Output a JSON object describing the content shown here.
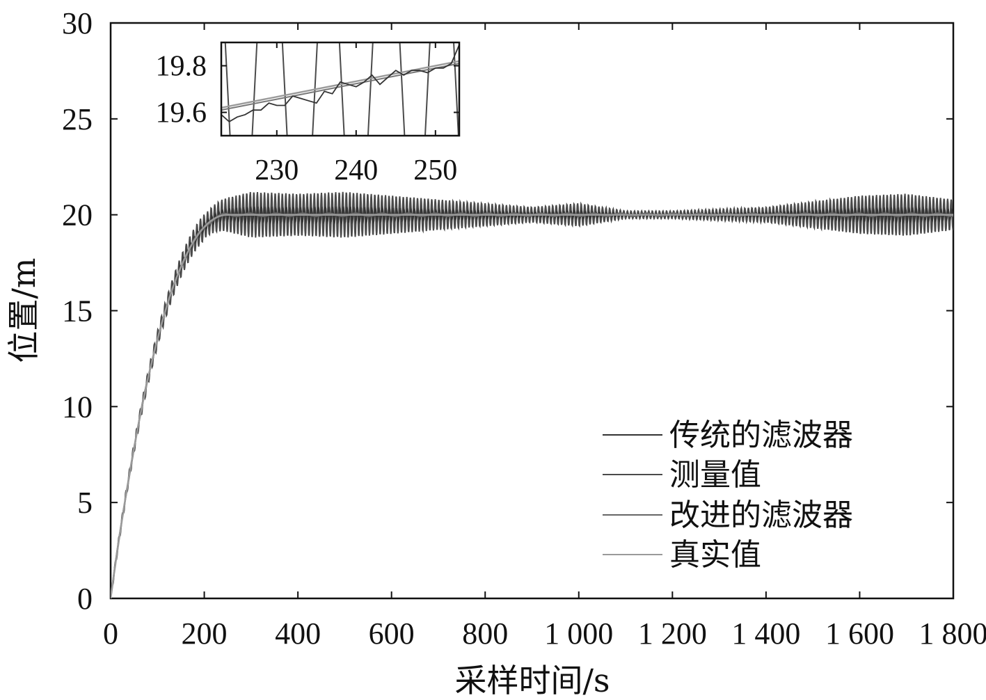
{
  "chart_data": {
    "type": "line",
    "xlabel": "采样时间/s",
    "ylabel": "位置/m",
    "xlim": [
      0,
      1800
    ],
    "ylim": [
      0,
      30
    ],
    "x_ticks": [
      0,
      200,
      400,
      600,
      800,
      1000,
      1200,
      1400,
      1600,
      1800
    ],
    "x_tick_labels": [
      "0",
      "200",
      "400",
      "600",
      "800",
      "1 000",
      "1 200",
      "1 400",
      "1 600",
      "1 800"
    ],
    "y_ticks": [
      0,
      5,
      10,
      15,
      20,
      25,
      30
    ],
    "y_tick_labels": [
      "0",
      "5",
      "10",
      "15",
      "20",
      "25",
      "30"
    ],
    "grid": false,
    "legend_position": "bottom-right",
    "steady_value": 20,
    "rise_time_s": 250,
    "measurement_oscillation_envelope": {
      "x": [
        200,
        300,
        400,
        500,
        600,
        700,
        800,
        900,
        1000,
        1050,
        1100,
        1200,
        1300,
        1400,
        1500,
        1600,
        1700,
        1800
      ],
      "amplitude": [
        0.6,
        1.2,
        1.1,
        1.2,
        1.0,
        0.8,
        0.6,
        0.4,
        0.6,
        0.4,
        0.2,
        0.2,
        0.3,
        0.4,
        0.7,
        1.0,
        1.1,
        0.8
      ]
    },
    "series": [
      {
        "name": "传统的滤波器",
        "color": "#333333",
        "style": "follows measurement with lag"
      },
      {
        "name": "测量值",
        "color": "#4a4a4a",
        "style": "oscillating around true value"
      },
      {
        "name": "改进的滤波器",
        "color": "#666666",
        "style": "close to true value"
      },
      {
        "name": "真实值",
        "color": "#9a9a9a",
        "style": "smooth rise to 20"
      }
    ],
    "inset": {
      "xlim": [
        223,
        253
      ],
      "ylim": [
        19.5,
        19.9
      ],
      "x_ticks": [
        230,
        240,
        250
      ],
      "x_tick_labels": [
        "230",
        "240",
        "250"
      ],
      "y_ticks": [
        19.6,
        19.8
      ],
      "y_tick_labels": [
        "19.6",
        "19.8"
      ],
      "true_value": {
        "x": [
          223,
          253
        ],
        "y": [
          19.62,
          19.82
        ]
      },
      "improved_filter": {
        "x": [
          223,
          253
        ],
        "y": [
          19.61,
          19.81
        ]
      },
      "traditional_filter": {
        "x": [
          223,
          224,
          225,
          226,
          227,
          228,
          229,
          230,
          231,
          232,
          233,
          234,
          235,
          236,
          237,
          238,
          239,
          240,
          241,
          242,
          243,
          244,
          245,
          246,
          247,
          248,
          249,
          250,
          251,
          252,
          253
        ],
        "y": [
          19.59,
          19.56,
          19.58,
          19.59,
          19.61,
          19.61,
          19.64,
          19.63,
          19.63,
          19.67,
          19.66,
          19.65,
          19.64,
          19.69,
          19.68,
          19.73,
          19.72,
          19.71,
          19.73,
          19.76,
          19.72,
          19.75,
          19.78,
          19.76,
          19.78,
          19.78,
          19.77,
          19.79,
          19.79,
          19.81,
          19.89
        ]
      },
      "measurement_crossings_x": [
        223.8,
        227.2,
        231.0,
        234.8,
        238.2,
        241.8,
        245.8,
        249.0,
        252.6
      ]
    }
  }
}
